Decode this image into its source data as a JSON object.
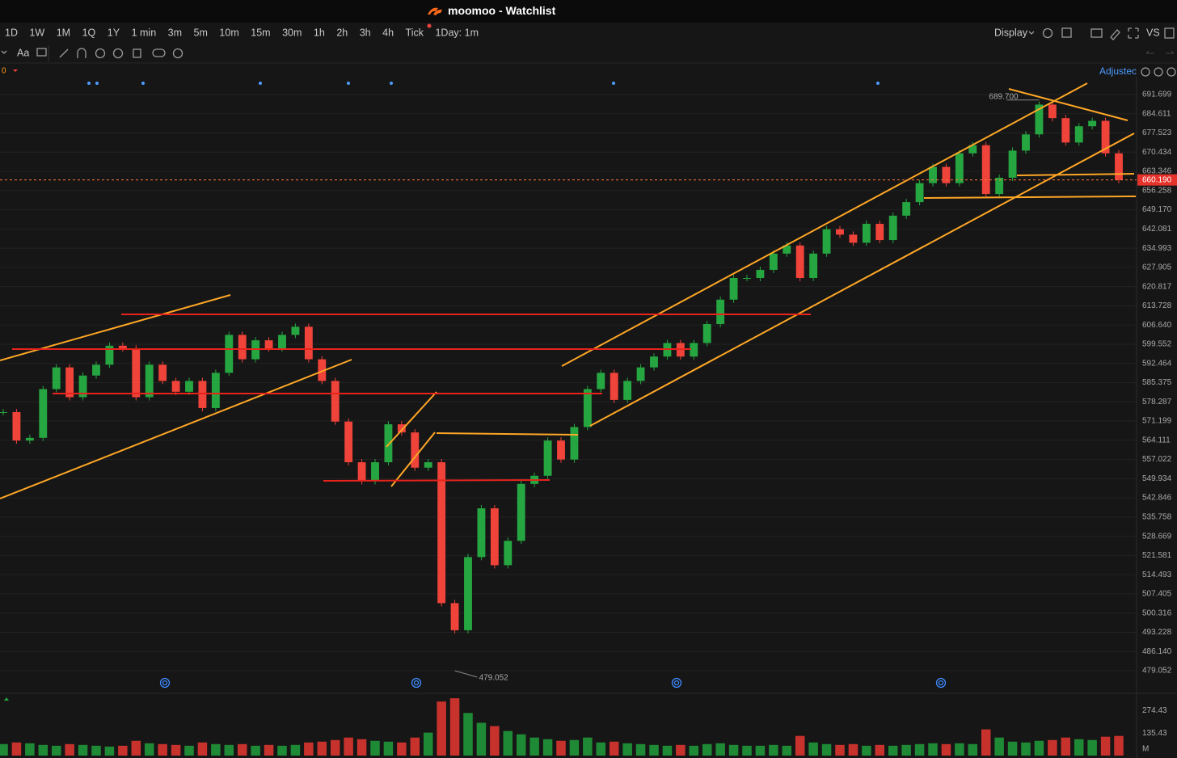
{
  "window": {
    "title": "moomoo - Watchlist"
  },
  "toolbar": {
    "periods": [
      "1D",
      "1W",
      "1M",
      "1Q",
      "1Y",
      "1 min",
      "3m",
      "5m",
      "10m",
      "15m",
      "30m",
      "1h",
      "2h",
      "3h",
      "4h",
      "Tick",
      "1Day: 1m"
    ],
    "display": "Display",
    "compare": "VS",
    "text_tool": "Aa"
  },
  "chart_header": {
    "indicator": "0",
    "adjust": "Adjustec"
  },
  "chart_data": [
    {
      "type": "candlestick",
      "values": [
        574.5,
        564,
        565,
        583,
        591,
        580,
        588,
        592,
        599,
        598,
        580,
        592,
        586,
        582,
        586,
        576,
        589,
        603,
        594,
        601,
        598,
        603,
        606,
        594,
        586,
        571,
        556,
        549,
        556,
        570,
        567,
        554,
        556,
        504,
        494,
        521,
        539,
        518,
        527,
        548,
        551,
        564,
        557,
        569,
        583,
        589,
        579,
        586,
        591,
        595,
        600,
        595,
        600,
        607,
        616,
        624,
        624,
        627,
        633,
        636,
        624,
        633,
        642,
        640,
        637,
        644,
        638,
        647,
        652,
        659,
        665,
        659,
        670,
        673,
        655,
        661,
        671,
        677,
        688,
        683,
        674,
        680,
        682,
        670,
        660.19
      ],
      "up_color": "#26a641",
      "down_color": "#f0433a",
      "ylim": [
        471.6,
        698.26
      ],
      "yticks": [
        691.699,
        684.611,
        677.523,
        670.434,
        663.346,
        656.258,
        {
          "value": 649.17,
          "label": "649.170"
        },
        642.081,
        634.993,
        627.905,
        620.817,
        613.728,
        {
          "value": 606.64,
          "label": "606.640"
        },
        599.552,
        592.464,
        585.375,
        578.287,
        571.199,
        564.111,
        557.022,
        549.934,
        542.846,
        535.758,
        528.669,
        521.581,
        514.493,
        507.405,
        500.316,
        493.228,
        {
          "value": 486.14,
          "label": "486.140"
        },
        479.052
      ],
      "last_price": {
        "value": 660.19,
        "label": "660.190"
      },
      "high": {
        "value": 689.7,
        "label": "689.700"
      },
      "low": 479.052,
      "grid": true
    },
    {
      "type": "bar",
      "values": [
        70,
        80,
        75,
        65,
        60,
        70,
        65,
        60,
        55,
        60,
        90,
        75,
        70,
        65,
        60,
        80,
        70,
        65,
        70,
        60,
        65,
        60,
        65,
        80,
        85,
        95,
        110,
        100,
        90,
        85,
        80,
        110,
        140,
        330,
        350,
        260,
        200,
        180,
        150,
        130,
        110,
        100,
        90,
        95,
        110,
        80,
        85,
        75,
        70,
        65,
        60,
        65,
        60,
        70,
        75,
        65,
        60,
        60,
        65,
        60,
        120,
        80,
        70,
        65,
        70,
        60,
        65,
        60,
        65,
        70,
        75,
        70,
        75,
        70,
        160,
        110,
        85,
        80,
        90,
        95,
        110,
        100,
        95,
        115,
        120
      ],
      "up_color": "#1f8a36",
      "down_color": "#c8322c",
      "ylim": [
        0,
        370
      ],
      "yticks": [
        135.43,
        274.43
      ],
      "unit": "M"
    }
  ]
}
